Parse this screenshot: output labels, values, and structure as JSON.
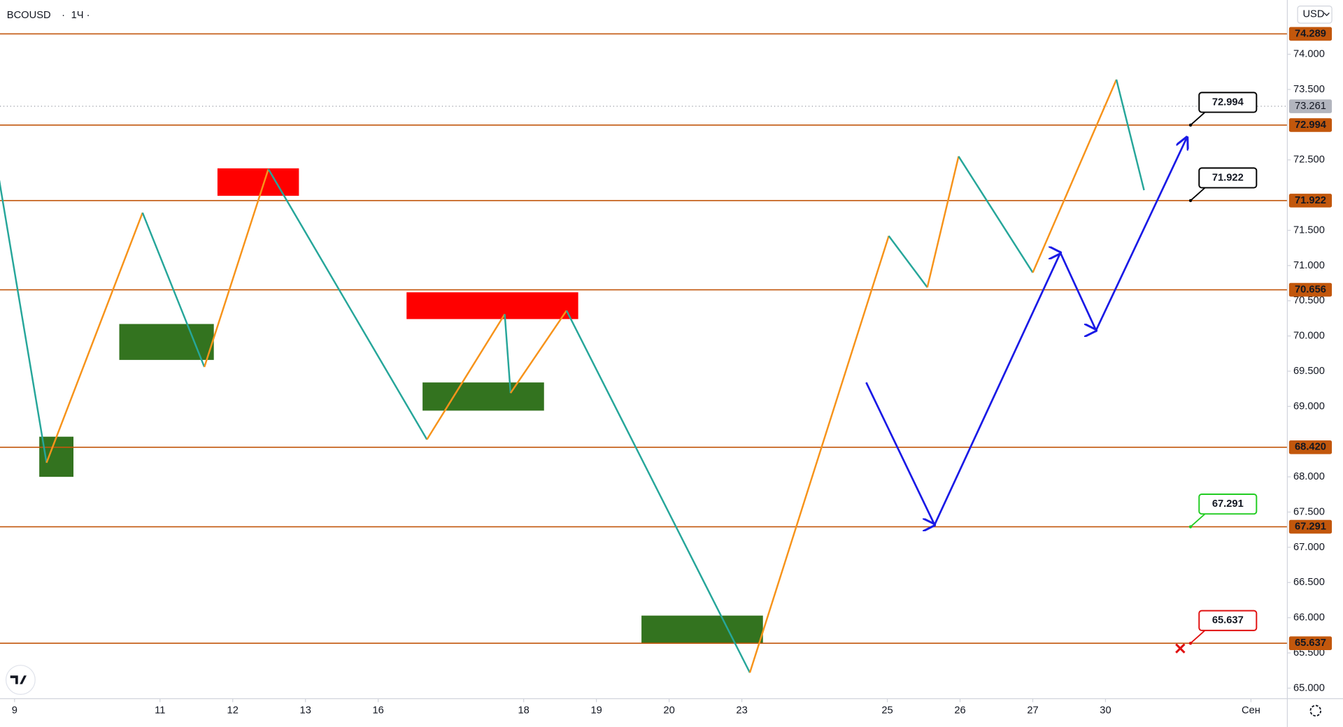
{
  "header": {
    "symbol": "BCOUSD",
    "interval": "1Ч",
    "currency": "USD"
  },
  "chart_data": {
    "type": "zigzag",
    "x": [
      -0.21,
      0.44,
      1.76,
      2.61,
      3.49,
      5.67,
      6.74,
      6.82,
      7.59,
      10.11,
      12.02,
      12.55,
      12.98,
      14.0,
      15.15,
      15.53
    ],
    "values": [
      72.21,
      68.2,
      71.75,
      69.56,
      72.37,
      68.53,
      70.31,
      69.19,
      70.36,
      65.22,
      71.42,
      70.69,
      72.55,
      70.9,
      73.64,
      72.07
    ],
    "up_color": "#f7931a",
    "down_color": "#26a69a",
    "xlim": [
      -0.2,
      17.5
    ],
    "ylim": [
      64.85,
      74.77
    ],
    "xticks": [
      {
        "value": 0,
        "label": "9"
      },
      {
        "value": 2,
        "label": "11"
      },
      {
        "value": 3,
        "label": "12"
      },
      {
        "value": 4,
        "label": "13"
      },
      {
        "value": 5,
        "label": "16"
      },
      {
        "value": 7,
        "label": "18"
      },
      {
        "value": 8,
        "label": "19"
      },
      {
        "value": 9,
        "label": "20"
      },
      {
        "value": 10,
        "label": "23"
      },
      {
        "value": 12,
        "label": "25"
      },
      {
        "value": 13,
        "label": "26"
      },
      {
        "value": 14,
        "label": "27"
      },
      {
        "value": 15,
        "label": "30"
      },
      {
        "value": 17,
        "label": "Сен"
      }
    ],
    "yticks": [
      {
        "value": 65,
        "label": "65.000"
      },
      {
        "value": 65.5,
        "label": "65.500"
      },
      {
        "value": 66,
        "label": "66.000"
      },
      {
        "value": 66.5,
        "label": "66.500"
      },
      {
        "value": 67,
        "label": "67.000"
      },
      {
        "value": 67.5,
        "label": "67.500"
      },
      {
        "value": 68,
        "label": "68.000"
      },
      {
        "value": 69,
        "label": "69.000"
      },
      {
        "value": 69.5,
        "label": "69.500"
      },
      {
        "value": 70,
        "label": "70.000"
      },
      {
        "value": 70.5,
        "label": "70.500"
      },
      {
        "value": 71,
        "label": "71.000"
      },
      {
        "value": 71.5,
        "label": "71.500"
      },
      {
        "value": 72.5,
        "label": "72.500"
      },
      {
        "value": 73.5,
        "label": "73.500"
      },
      {
        "value": 74,
        "label": "74.000"
      }
    ],
    "level_color": "#c2570c",
    "levels": [
      {
        "value": 74.289,
        "label": "74.289"
      },
      {
        "value": 72.994,
        "label": "72.994"
      },
      {
        "value": 71.922,
        "label": "71.922"
      },
      {
        "value": 70.656,
        "label": "70.656"
      },
      {
        "value": 68.42,
        "label": "68.420"
      },
      {
        "value": 67.291,
        "label": "67.291"
      },
      {
        "value": 65.637,
        "label": "65.637"
      }
    ],
    "last_price": 73.261,
    "zones": [
      {
        "x": [
          2.79,
          3.91
        ],
        "y": [
          71.99,
          72.38
        ],
        "color": "#ff0000"
      },
      {
        "x": [
          5.39,
          7.75
        ],
        "y": [
          70.24,
          70.62
        ],
        "color": "#ff0000"
      },
      {
        "x": [
          1.44,
          2.74
        ],
        "y": [
          69.66,
          70.17
        ],
        "color": "#33731f"
      },
      {
        "x": [
          0.34,
          0.81
        ],
        "y": [
          68.0,
          68.57
        ],
        "color": "#33731f"
      },
      {
        "x": [
          5.61,
          7.28
        ],
        "y": [
          68.94,
          69.34
        ],
        "color": "#33731f"
      },
      {
        "x": [
          8.62,
          10.29
        ],
        "y": [
          65.64,
          66.03
        ],
        "color": "#33731f"
      }
    ],
    "forecast": {
      "color": "#1a1ae6",
      "x": [
        11.71,
        12.65,
        14.38,
        14.87,
        16.12
      ],
      "values": [
        69.34,
        67.32,
        71.18,
        70.08,
        72.82
      ]
    },
    "alerts": [
      {
        "value": 72.994,
        "label": "72.994",
        "color": "#000000"
      },
      {
        "value": 71.922,
        "label": "71.922",
        "color": "#000000"
      },
      {
        "value": 67.291,
        "label": "67.291",
        "color": "#22cc22"
      },
      {
        "value": 65.637,
        "label": "65.637",
        "color": "#e01010",
        "cross": true
      }
    ]
  }
}
